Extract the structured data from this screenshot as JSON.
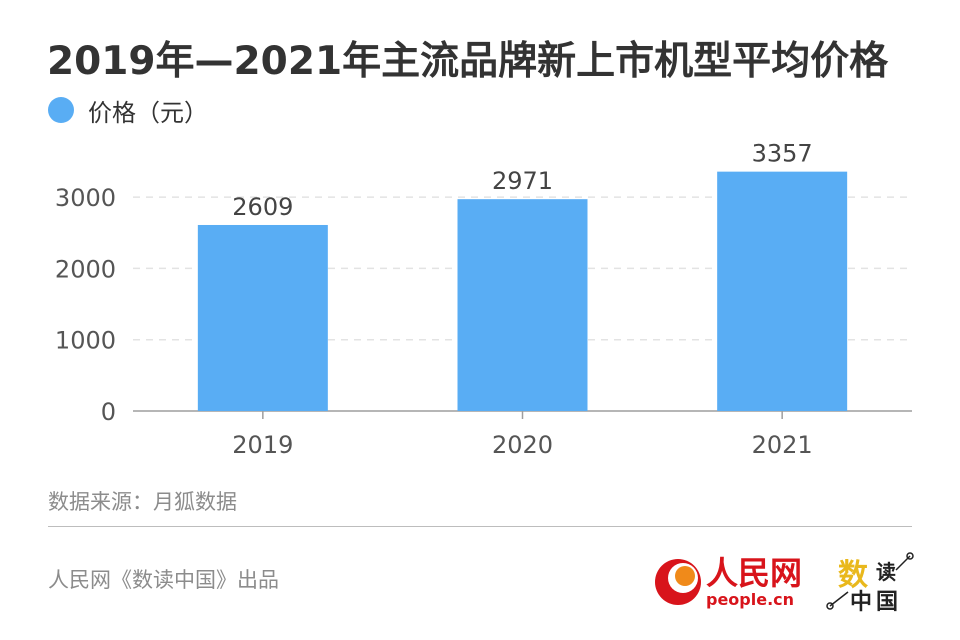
{
  "chart_data": {
    "type": "bar",
    "title": "2019年—2021年主流品牌新上市机型平均价格",
    "legend": {
      "entries": [
        "价格（元）"
      ],
      "placement": "top-left"
    },
    "categories": [
      "2019",
      "2020",
      "2021"
    ],
    "series": [
      {
        "name": "价格（元）",
        "values": [
          2609,
          2971,
          3357
        ],
        "color": "#59adf4"
      }
    ],
    "data_labels": [
      "2609",
      "2971",
      "3357"
    ],
    "ylim": [
      0,
      3500
    ],
    "yticks": [
      0,
      1000,
      2000,
      3000
    ],
    "ytick_labels": [
      "0",
      "1000",
      "2000",
      "3000"
    ],
    "xlabel": "",
    "ylabel": "",
    "grid": true
  },
  "source": "数据来源：月狐数据",
  "credit": "人民网《数读中国》出品",
  "logos": {
    "people": {
      "cn": "人民网",
      "en": "people.cn",
      "color": "#d8141b"
    },
    "shudu": {
      "shu": "数",
      "du": "读",
      "zg": "中国"
    }
  }
}
